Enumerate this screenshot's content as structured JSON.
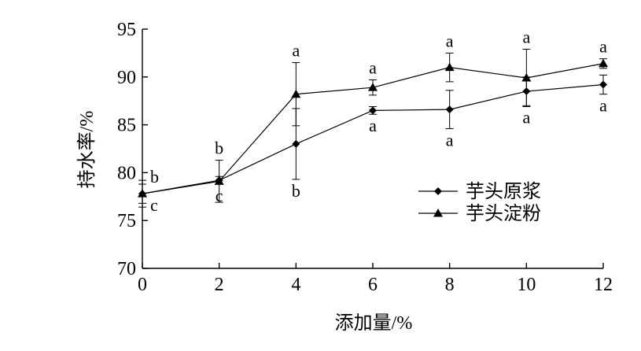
{
  "chart_data": {
    "type": "line",
    "title": "",
    "xlabel": "添加量/%",
    "ylabel": "持水率/%",
    "x": [
      0,
      2,
      4,
      6,
      8,
      10,
      12
    ],
    "xlim": [
      0,
      12
    ],
    "ylim": [
      70,
      95
    ],
    "xticks": [
      "0",
      "2",
      "4",
      "6",
      "8",
      "10",
      "12"
    ],
    "yticks": [
      "70",
      "75",
      "80",
      "85",
      "90",
      "95"
    ],
    "grid": false,
    "legend_position": "center-right",
    "series": [
      {
        "name": "芋头原浆",
        "marker": "diamond",
        "color": "#000000",
        "values": [
          77.8,
          79.2,
          83.0,
          86.5,
          86.6,
          88.5,
          89.2
        ],
        "error": [
          1.0,
          0.4,
          3.7,
          0.4,
          2.0,
          1.5,
          1.0
        ],
        "letters": [
          "c",
          "c",
          "b",
          "a",
          "a",
          "a",
          "a"
        ]
      },
      {
        "name": "芋头淀粉",
        "marker": "triangle",
        "color": "#000000",
        "values": [
          77.8,
          79.1,
          88.2,
          88.9,
          91.0,
          89.9,
          91.4
        ],
        "error": [
          1.4,
          2.2,
          3.3,
          0.8,
          1.5,
          3.0,
          0.5
        ],
        "letters": [
          "b",
          "b",
          "a",
          "a",
          "a",
          "a",
          "a"
        ]
      }
    ]
  }
}
